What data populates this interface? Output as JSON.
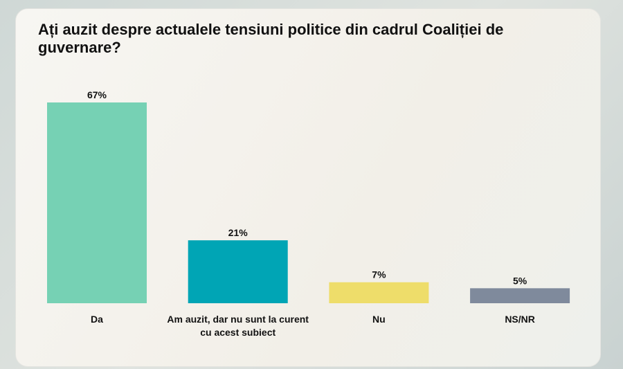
{
  "chart_data": {
    "type": "bar",
    "title": "Ați auzit despre actualele tensiuni politice din cadrul Coaliției de guvernare?",
    "categories": [
      "Da",
      "Am auzit, dar nu sunt la curent cu acest subiect",
      "Nu",
      "NS/NR"
    ],
    "values": [
      67,
      21,
      7,
      5
    ],
    "value_labels": [
      "67%",
      "21%",
      "7%",
      "5%"
    ],
    "colors": [
      "#76d1b4",
      "#00a5b5",
      "#eedd6a",
      "#7f8a9c"
    ]
  }
}
